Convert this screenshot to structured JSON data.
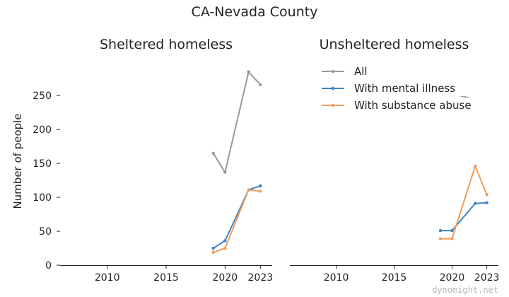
{
  "chart_data": {
    "type": "line",
    "title": "CA-Nevada County",
    "ylabel": "Number of people",
    "xlim": [
      2006,
      2024
    ],
    "ylim": [
      0,
      295
    ],
    "xticks": [
      2010,
      2015,
      2020,
      2023
    ],
    "yticks": [
      0,
      50,
      100,
      150,
      200,
      250
    ],
    "colors": {
      "All": "#999999",
      "With mental illness": "#3d85c6",
      "With substance abuse": "#f39c5a"
    },
    "legend": {
      "position": "top-right-of-right-panel",
      "entries": [
        "All",
        "With mental illness",
        "With substance abuse"
      ]
    },
    "panels": [
      {
        "subtitle": "Sheltered homeless",
        "series": [
          {
            "name": "All",
            "x": [
              2019,
              2020,
              2022,
              2023
            ],
            "values": [
              165,
              137,
              285,
              266
            ]
          },
          {
            "name": "With mental illness",
            "x": [
              2019,
              2020,
              2022,
              2023
            ],
            "values": [
              25,
              36,
              111,
              117
            ]
          },
          {
            "name": "With substance abuse",
            "x": [
              2019,
              2020,
              2022,
              2023
            ],
            "values": [
              19,
              25,
              111,
              109
            ]
          }
        ]
      },
      {
        "subtitle": "Unsheltered homeless",
        "series": [
          {
            "name": "All",
            "x": [
              2019,
              2020,
              2022,
              2023
            ],
            "values": [
              270,
              253,
              244,
              228
            ]
          },
          {
            "name": "With mental illness",
            "x": [
              2019,
              2020,
              2022,
              2023
            ],
            "values": [
              51,
              51,
              91,
              92
            ]
          },
          {
            "name": "With substance abuse",
            "x": [
              2019,
              2020,
              2022,
              2023
            ],
            "values": [
              39,
              39,
              146,
              104
            ]
          }
        ]
      }
    ]
  },
  "watermark": "dynomight.net"
}
